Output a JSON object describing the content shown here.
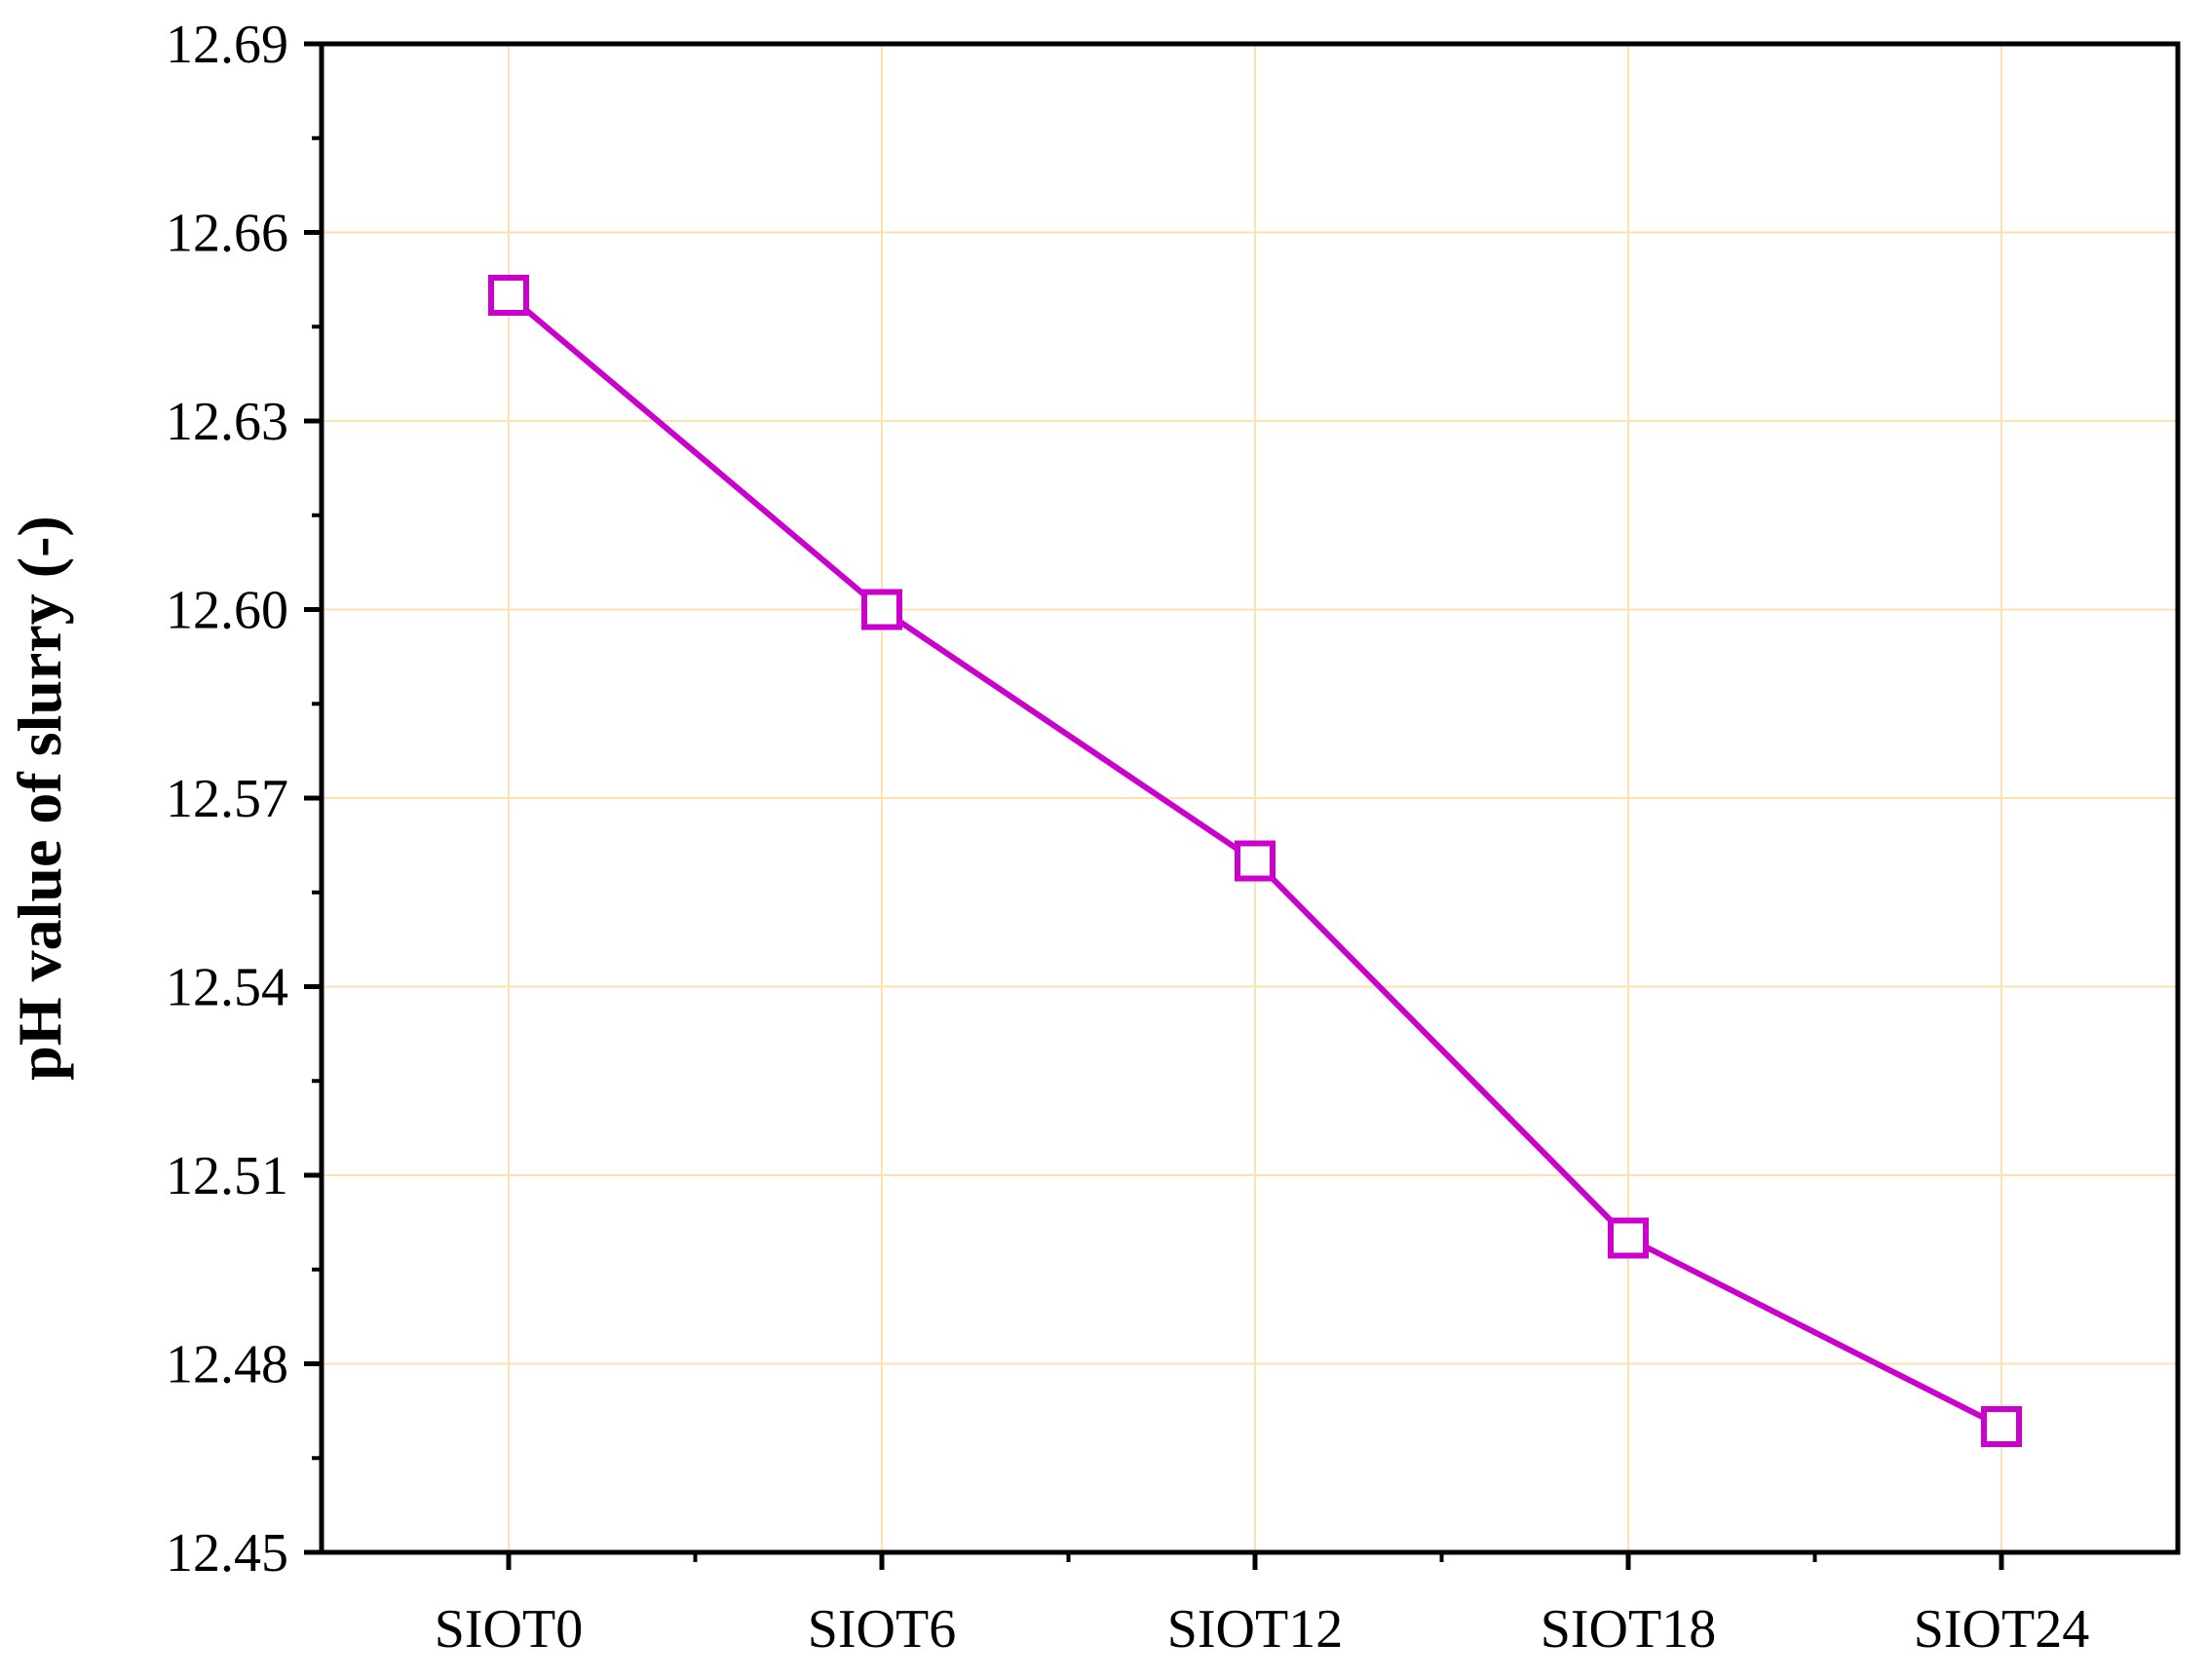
{
  "chart_data": {
    "type": "line",
    "title": "",
    "xlabel": "",
    "ylabel": "pH value of slurry (-)",
    "categories": [
      "SIOT0",
      "SIOT6",
      "SIOT12",
      "SIOT18",
      "SIOT24"
    ],
    "series": [
      {
        "values": [
          12.65,
          12.6,
          12.56,
          12.5,
          12.47
        ],
        "color": "#cc00cc",
        "marker": "open-square"
      }
    ],
    "ylim": [
      12.45,
      12.69
    ],
    "yticks": [
      "12.45",
      "12.48",
      "12.51",
      "12.54",
      "12.57",
      "12.60",
      "12.63",
      "12.66",
      "12.69"
    ],
    "grid": true,
    "grid_color": "#fde2b0",
    "legend": "none"
  }
}
